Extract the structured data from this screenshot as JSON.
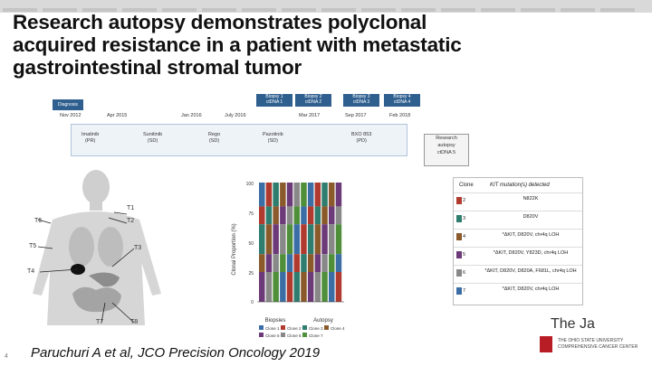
{
  "slide": {
    "title_lines": [
      "Research autopsy demonstrates polyclonal",
      "acquired resistance in a patient with metastatic",
      "gastrointestinal stromal tumor"
    ],
    "citation": "Paruchuri A et al, JCO Precision Oncology 2019",
    "page_number": "4"
  },
  "timeline": {
    "diagnosis_label": "Diagnosis",
    "dates": [
      "Nov 2012",
      "Apr 2015",
      "Jan 2016",
      "July 2016",
      "Mar 2017",
      "Sep 2017",
      "Feb 2018"
    ],
    "biopsies": [
      {
        "label": "Biopsy 1",
        "sub": "ctDNA 1"
      },
      {
        "label": "Biopsy 2",
        "sub": "ctDNA 2"
      },
      {
        "label": "Biopsy 3",
        "sub": "ctDNA 3"
      },
      {
        "label": "Biopsy 4",
        "sub": "ctDNA 4"
      }
    ],
    "drugs": [
      {
        "name": "Imatinib",
        "sub": "(PR)"
      },
      {
        "name": "Sunitinib",
        "sub": "(SD)"
      },
      {
        "name": "Rego",
        "sub": "(SD)"
      },
      {
        "name": "Pazotinib",
        "sub": "(SD)"
      },
      {
        "name": "BXO 853",
        "sub": "(PD)"
      }
    ],
    "research_box": [
      "Research",
      "autopsy",
      "ctDNA 5"
    ]
  },
  "body_labels": [
    "T1",
    "T2",
    "T3",
    "T4",
    "T6",
    "T5",
    "T7",
    "T8"
  ],
  "chart_data": {
    "type": "bar",
    "ylabel": "Clonal Proportion (%)",
    "yticks": [
      "100",
      "75",
      "50",
      "25",
      "0"
    ],
    "group_labels": [
      "Biopsies",
      "Autopsy"
    ],
    "legend": [
      "Clone 1",
      "Clone 2",
      "Clone 3",
      "Clone 4",
      "Clone 5",
      "Clone 6",
      "Clone 7"
    ]
  },
  "table": {
    "header_clone": "Clone",
    "header_mut": "KIT mutation(s) detected",
    "rows": [
      {
        "clone": "2",
        "color": "#b03a2e",
        "mut": "N822K"
      },
      {
        "clone": "3",
        "color": "#2e7d6e",
        "mut": "D820V"
      },
      {
        "clone": "4",
        "color": "#8a5a2b",
        "mut": "*ΔKIT, D820V, chr4q LOH"
      },
      {
        "clone": "5",
        "color": "#6c3a78",
        "mut": "*ΔKIT, D820V, Y823D, chr4q LOH"
      },
      {
        "clone": "6",
        "color": "#888888",
        "mut": "*ΔKIT, D820V, D820A, F681L, chr4q LOH"
      },
      {
        "clone": "7",
        "color": "#3a6ea5",
        "mut": "*ΔKIT, D820V, chr4q LOH"
      }
    ]
  },
  "logo": {
    "main": "The Ja",
    "sub1": "THE OHIO STATE UNIVERSITY",
    "sub2": "COMPREHENSIVE CANCER CENTER"
  }
}
